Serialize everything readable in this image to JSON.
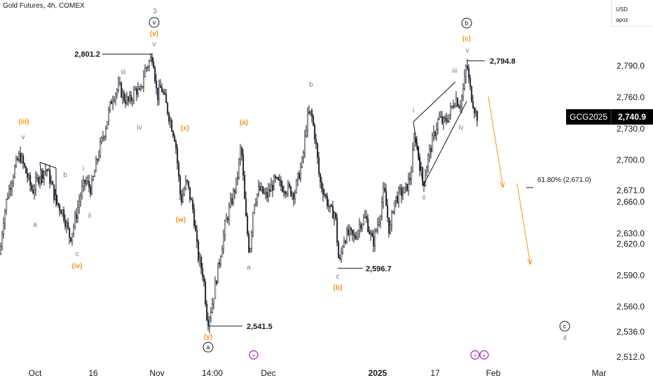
{
  "header": {
    "title": "Gold Futures, 4h, COMEX"
  },
  "currency_box": {
    "currency": "USD",
    "user": "apoz"
  },
  "ticker": {
    "symbol": "GCG2025",
    "last_price": "2,740.9"
  },
  "fib_label": "61.80% (2,671.0)",
  "colors": {
    "candle": "#131722",
    "orange": "#f7931a",
    "gray_label": "#787b86",
    "ticker_bg": "#000000"
  },
  "chart_data": {
    "type": "candlestick",
    "title": "Gold Futures, 4h, COMEX",
    "y_ticks": [
      2790,
      2760,
      2730,
      2700,
      2671,
      2660,
      2630,
      2620,
      2590,
      2560,
      2536,
      2512
    ],
    "y_tick_labels": [
      "2,790.0",
      "2,760.0",
      "2,730.0",
      "2,700.0",
      "2,671.0",
      "2,660.0",
      "2,630.0",
      "2,620.0",
      "2,590.0",
      "2,560.0",
      "2,536.0",
      "2,512.0"
    ],
    "x_tick_labels": [
      "Oct",
      "16",
      "Nov",
      "14:00",
      "Dec",
      "2025",
      "17",
      "Feb",
      "Mar"
    ],
    "price_path": [
      [
        0,
        2610
      ],
      [
        4,
        2640
      ],
      [
        10,
        2665
      ],
      [
        20,
        2690
      ],
      [
        28,
        2705
      ],
      [
        36,
        2690
      ],
      [
        46,
        2670
      ],
      [
        56,
        2685
      ],
      [
        66,
        2692
      ],
      [
        72,
        2680
      ],
      [
        80,
        2660
      ],
      [
        90,
        2650
      ],
      [
        100,
        2625
      ],
      [
        106,
        2640
      ],
      [
        116,
        2670
      ],
      [
        122,
        2680
      ],
      [
        130,
        2672
      ],
      [
        140,
        2705
      ],
      [
        150,
        2730
      ],
      [
        160,
        2760
      ],
      [
        170,
        2770
      ],
      [
        176,
        2760
      ],
      [
        184,
        2755
      ],
      [
        194,
        2768
      ],
      [
        200,
        2762
      ],
      [
        206,
        2785
      ],
      [
        214,
        2795
      ],
      [
        218,
        2801
      ],
      [
        224,
        2760
      ],
      [
        230,
        2770
      ],
      [
        238,
        2750
      ],
      [
        250,
        2720
      ],
      [
        258,
        2660
      ],
      [
        266,
        2680
      ],
      [
        276,
        2650
      ],
      [
        282,
        2610
      ],
      [
        290,
        2590
      ],
      [
        296,
        2545
      ],
      [
        302,
        2560
      ],
      [
        312,
        2600
      ],
      [
        322,
        2640
      ],
      [
        330,
        2660
      ],
      [
        338,
        2680
      ],
      [
        344,
        2715
      ],
      [
        350,
        2650
      ],
      [
        356,
        2610
      ],
      [
        362,
        2660
      ],
      [
        370,
        2672
      ],
      [
        380,
        2665
      ],
      [
        392,
        2680
      ],
      [
        402,
        2675
      ],
      [
        412,
        2672
      ],
      [
        420,
        2668
      ],
      [
        428,
        2690
      ],
      [
        432,
        2700
      ],
      [
        438,
        2740
      ],
      [
        444,
        2745
      ],
      [
        450,
        2720
      ],
      [
        456,
        2680
      ],
      [
        462,
        2670
      ],
      [
        472,
        2650
      ],
      [
        478,
        2650
      ],
      [
        484,
        2598
      ],
      [
        490,
        2625
      ],
      [
        498,
        2630
      ],
      [
        506,
        2625
      ],
      [
        514,
        2640
      ],
      [
        522,
        2645
      ],
      [
        532,
        2620
      ],
      [
        542,
        2648
      ],
      [
        548,
        2672
      ],
      [
        556,
        2630
      ],
      [
        562,
        2660
      ],
      [
        570,
        2668
      ],
      [
        578,
        2670
      ],
      [
        586,
        2685
      ],
      [
        592,
        2725
      ],
      [
        598,
        2700
      ],
      [
        604,
        2676
      ],
      [
        610,
        2700
      ],
      [
        618,
        2720
      ],
      [
        626,
        2740
      ],
      [
        634,
        2735
      ],
      [
        642,
        2745
      ],
      [
        650,
        2760
      ],
      [
        656,
        2752
      ],
      [
        662,
        2770
      ],
      [
        666,
        2794
      ],
      [
        670,
        2770
      ],
      [
        676,
        2752
      ],
      [
        680,
        2742
      ]
    ],
    "annotations": [
      {
        "text": "2,801.2",
        "value": 2801.2
      },
      {
        "text": "2,794.8",
        "value": 2794.8
      },
      {
        "text": "2,596.7",
        "value": 2596.7
      },
      {
        "text": "2,541.5",
        "value": 2541.5
      }
    ]
  },
  "wave_labels": {
    "gray": [
      "v",
      "a",
      "b",
      "i",
      "ii",
      "c",
      "iii",
      "iv",
      "v",
      "a",
      "b",
      "c",
      "i",
      "ii",
      "iii",
      "iv",
      "v",
      "3",
      "4"
    ],
    "orange": [
      "(iii)",
      "(iv)",
      "(v)",
      "(x)",
      "(w)",
      "(y)",
      "(a)",
      "(b)",
      "(c)"
    ],
    "circled": [
      "v",
      "b",
      "a",
      "c"
    ]
  }
}
